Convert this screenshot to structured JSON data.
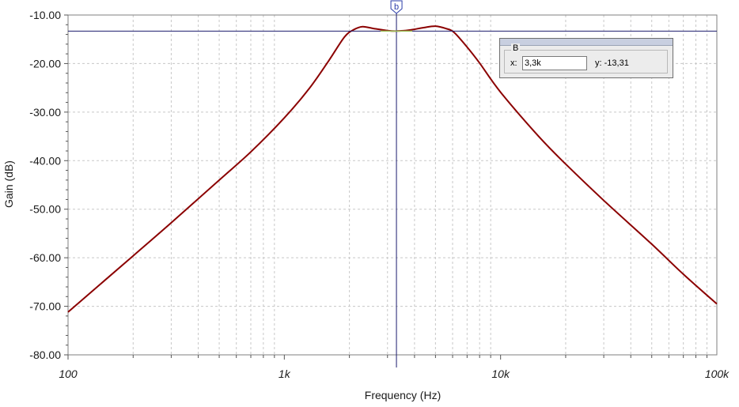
{
  "chart_data": {
    "type": "line",
    "xlabel": "Frequency (Hz)",
    "ylabel": "Gain (dB)",
    "x_scale": "log",
    "xlim": [
      100,
      100000
    ],
    "ylim": [
      -80,
      -10
    ],
    "grid": true,
    "x_ticks": [
      {
        "value": 100,
        "label": "100"
      },
      {
        "value": 1000,
        "label": "1k"
      },
      {
        "value": 10000,
        "label": "10k"
      },
      {
        "value": 100000,
        "label": "100k"
      }
    ],
    "y_ticks": [
      {
        "value": -10,
        "label": "-10.00"
      },
      {
        "value": -20,
        "label": "-20.00"
      },
      {
        "value": -30,
        "label": "-30.00"
      },
      {
        "value": -40,
        "label": "-40.00"
      },
      {
        "value": -50,
        "label": "-50.00"
      },
      {
        "value": -60,
        "label": "-60.00"
      },
      {
        "value": -70,
        "label": "-70.00"
      },
      {
        "value": -80,
        "label": "-80.00"
      }
    ],
    "series": [
      {
        "color": "#8b0000",
        "points": [
          [
            100,
            -71.2
          ],
          [
            200,
            -59.6
          ],
          [
            300,
            -52.8
          ],
          [
            500,
            -44.0
          ],
          [
            700,
            -38.2
          ],
          [
            1000,
            -31.2
          ],
          [
            1300,
            -25.2
          ],
          [
            1600,
            -19.5
          ],
          [
            1900,
            -14.5
          ],
          [
            2100,
            -13.0
          ],
          [
            2300,
            -12.4
          ],
          [
            2600,
            -12.8
          ],
          [
            3000,
            -13.2
          ],
          [
            3300,
            -13.31
          ],
          [
            3800,
            -13.1
          ],
          [
            4400,
            -12.6
          ],
          [
            5000,
            -12.3
          ],
          [
            5600,
            -12.8
          ],
          [
            6100,
            -13.6
          ],
          [
            7000,
            -16.6
          ],
          [
            8000,
            -19.9
          ],
          [
            10000,
            -25.9
          ],
          [
            15000,
            -35.0
          ],
          [
            20000,
            -40.7
          ],
          [
            30000,
            -48.2
          ],
          [
            50000,
            -57.2
          ],
          [
            70000,
            -63.4
          ],
          [
            100000,
            -69.5
          ]
        ]
      }
    ],
    "cursor": {
      "name": "b",
      "x": 3300,
      "y": -13.31,
      "line_color": "#1c1c6e",
      "highlight_color": "#9cc25a"
    }
  },
  "cursor_panel": {
    "group_label": "B",
    "x_label": "x:",
    "x_value": "3,3k",
    "y_label": "y:",
    "y_value": "-13,31"
  }
}
